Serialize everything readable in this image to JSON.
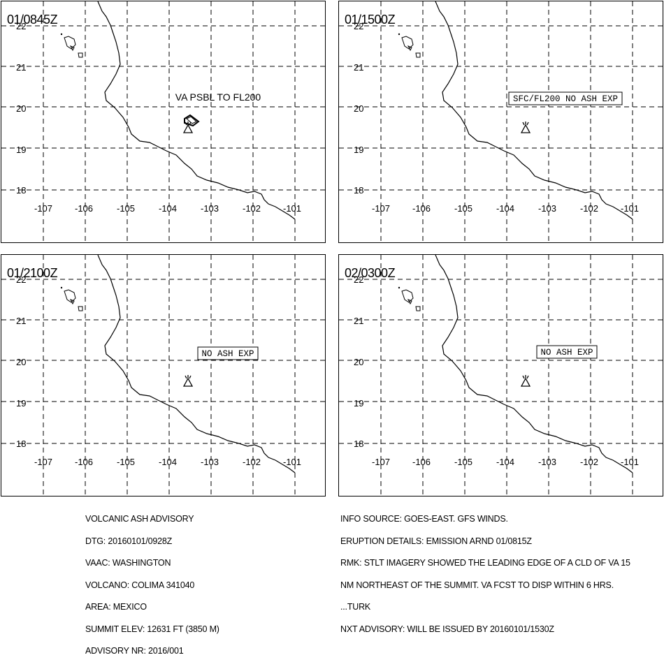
{
  "map": {
    "lat_labels": [
      "18",
      "19",
      "20",
      "21",
      "22"
    ],
    "lon_labels": [
      "-107",
      "-106",
      "-105",
      "-104",
      "-103",
      "-102",
      "-101"
    ],
    "panels": [
      {
        "time": "01/0845Z",
        "annotation": "VA PSBL TO FL200",
        "annotation_boxed": false,
        "ash_polygon": true
      },
      {
        "time": "01/1500Z",
        "annotation": "SFC/FL200 NO ASH EXP",
        "annotation_boxed": true,
        "ash_polygon": false
      },
      {
        "time": "01/2100Z",
        "annotation": "NO ASH EXP",
        "annotation_boxed": true,
        "ash_polygon": false
      },
      {
        "time": "02/0300Z",
        "annotation": "NO ASH EXP",
        "annotation_boxed": true,
        "ash_polygon": false
      }
    ]
  },
  "advisory": {
    "left_lines": [
      "VOLCANIC ASH ADVISORY",
      "DTG: 20160101/0928Z",
      "VAAC: WASHINGTON",
      "VOLCANO: COLIMA 341040",
      "AREA: MEXICO",
      "SUMMIT ELEV: 12631 FT (3850 M)",
      "ADVISORY NR: 2016/001"
    ],
    "right_lines": [
      "INFO SOURCE: GOES-EAST. GFS WINDS.",
      "ERUPTION DETAILS: EMISSION ARND 01/0815Z",
      "RMK: STLT IMAGERY SHOWED THE LEADING EDGE OF A CLD OF VA 15",
      "NM NORTHEAST OF THE SUMMIT. VA FCST TO DISP WITHIN 6 HRS.",
      "...TURK",
      "NXT ADVISORY: WILL BE ISSUED BY 20160101/1530Z"
    ]
  }
}
